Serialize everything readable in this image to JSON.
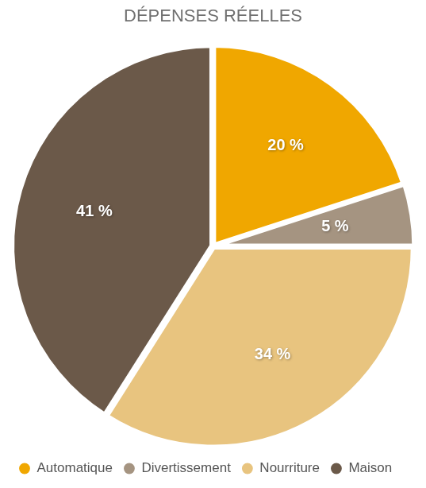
{
  "chart_data": {
    "type": "pie",
    "title": "DÉPENSES RÉELLES",
    "categories": [
      "Automatique",
      "Divertissement",
      "Nourriture",
      "Maison"
    ],
    "values": [
      20,
      5,
      34,
      41
    ],
    "value_labels": [
      "20 %",
      "5 %",
      "34 %",
      "41 %"
    ],
    "colors": [
      "#f0a700",
      "#a59481",
      "#e8c47f",
      "#6b5949"
    ],
    "data_labels": true,
    "legend": "bottom"
  }
}
